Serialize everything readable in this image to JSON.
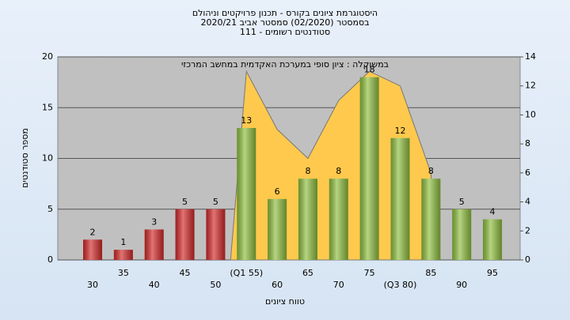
{
  "chart_data": {
    "type": "bar",
    "title_lines": [
      "היסטוגרמת ציונים בקורס - תכנון פרויקטים וניהולם",
      "בסמסטר (02/2020) סמסטר אביב 2020/21",
      "סטודנטים רשומים - 111"
    ],
    "annotation": "במשוקלה : ציון סופי במערכת האקדמית במחשב המרכזי",
    "x_label": "טווח ציונים",
    "y_label": "מספר סטודנטים",
    "categories": [
      "30",
      "35",
      "40",
      "45",
      "50",
      "(Q1 55)",
      "60",
      "65",
      "70",
      "75",
      "(Q3 80)",
      "85",
      "90",
      "95"
    ],
    "values": [
      2,
      1,
      3,
      5,
      5,
      13,
      6,
      8,
      8,
      18,
      12,
      8,
      5,
      4
    ],
    "colors": [
      "#d42a2a",
      "#d42a2a",
      "#d42a2a",
      "#d42a2a",
      "#d42a2a",
      "#8fbf3f",
      "#8fbf3f",
      "#8fbf3f",
      "#8fbf3f",
      "#8fbf3f",
      "#8fbf3f",
      "#8fbf3f",
      "#8fbf3f",
      "#8fbf3f"
    ],
    "area": {
      "axis": "y2",
      "color": "#ffc94d",
      "values": [
        null,
        null,
        null,
        null,
        null,
        13,
        9,
        7,
        11,
        13,
        12,
        6,
        null,
        null
      ]
    },
    "ylim": [
      0,
      20
    ],
    "yticks": [
      0,
      5,
      10,
      15,
      20
    ],
    "y2lim": [
      0,
      14
    ],
    "y2ticks": [
      0,
      2,
      4,
      6,
      8,
      10,
      12,
      14
    ],
    "grid": true
  }
}
